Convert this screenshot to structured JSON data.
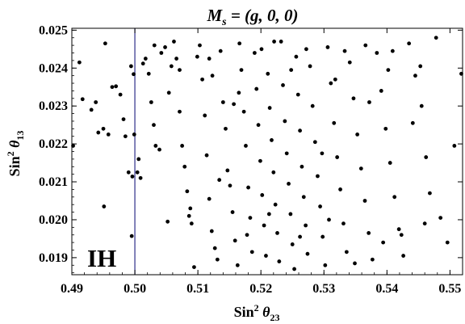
{
  "chart_data": {
    "type": "scatter",
    "title": {
      "prefix": "M",
      "sub": "s",
      "rest": " = (g, 0, 0)"
    },
    "xlabel": {
      "prefix": "Sin",
      "sup": "2",
      "theta": " θ",
      "sub": "23"
    },
    "ylabel": {
      "prefix": "Sin",
      "sup": "2",
      "theta": " θ",
      "sub": "13"
    },
    "xlim": [
      0.49,
      0.552
    ],
    "ylim": [
      0.01855,
      0.02505
    ],
    "x_ticks": [
      {
        "value": 0.49,
        "label": "0.49"
      },
      {
        "value": 0.5,
        "label": "0.50"
      },
      {
        "value": 0.51,
        "label": "0.51"
      },
      {
        "value": 0.52,
        "label": "0.52"
      },
      {
        "value": 0.53,
        "label": "0.53"
      },
      {
        "value": 0.54,
        "label": "0.54"
      },
      {
        "value": 0.55,
        "label": "0.55"
      }
    ],
    "y_ticks": [
      {
        "value": 0.019,
        "label": "0.019"
      },
      {
        "value": 0.02,
        "label": "0.020"
      },
      {
        "value": 0.021,
        "label": "0.021"
      },
      {
        "value": 0.022,
        "label": "0.022"
      },
      {
        "value": 0.023,
        "label": "0.023"
      },
      {
        "value": 0.024,
        "label": "0.024"
      },
      {
        "value": 0.025,
        "label": "0.025"
      }
    ],
    "reference_line": {
      "x": 0.5,
      "color": "#2e2e8a"
    },
    "annotation": "IH",
    "grid": false,
    "marker_color": "#000000",
    "points": [
      [
        0.4902,
        0.02195
      ],
      [
        0.4912,
        0.02415
      ],
      [
        0.4917,
        0.02318
      ],
      [
        0.4931,
        0.0229
      ],
      [
        0.4938,
        0.0231
      ],
      [
        0.4942,
        0.0223
      ],
      [
        0.495,
        0.0224
      ],
      [
        0.4953,
        0.02465
      ],
      [
        0.4951,
        0.02035
      ],
      [
        0.4958,
        0.02225
      ],
      [
        0.4964,
        0.0235
      ],
      [
        0.497,
        0.02352
      ],
      [
        0.4977,
        0.0233
      ],
      [
        0.4982,
        0.02265
      ],
      [
        0.4985,
        0.0222
      ],
      [
        0.499,
        0.02125
      ],
      [
        0.4996,
        0.02114
      ],
      [
        0.4998,
        0.02384
      ],
      [
        0.4999,
        0.02225
      ],
      [
        0.4994,
        0.02405
      ],
      [
        0.4995,
        0.01957
      ],
      [
        0.5004,
        0.02125
      ],
      [
        0.5006,
        0.0216
      ],
      [
        0.5009,
        0.0211
      ],
      [
        0.5013,
        0.02412
      ],
      [
        0.5017,
        0.02425
      ],
      [
        0.5022,
        0.02385
      ],
      [
        0.5026,
        0.0231
      ],
      [
        0.503,
        0.0225
      ],
      [
        0.5033,
        0.02195
      ],
      [
        0.5039,
        0.02185
      ],
      [
        0.5042,
        0.0244
      ],
      [
        0.5048,
        0.02455
      ],
      [
        0.5054,
        0.02335
      ],
      [
        0.5058,
        0.02405
      ],
      [
        0.5062,
        0.0247
      ],
      [
        0.5066,
        0.02425
      ],
      [
        0.5071,
        0.02285
      ],
      [
        0.5075,
        0.02195
      ],
      [
        0.5079,
        0.0214
      ],
      [
        0.5083,
        0.02075
      ],
      [
        0.5086,
        0.0201
      ],
      [
        0.509,
        0.0199
      ],
      [
        0.5094,
        0.01875
      ],
      [
        0.5099,
        0.0243
      ],
      [
        0.5103,
        0.0246
      ],
      [
        0.5107,
        0.0237
      ],
      [
        0.5111,
        0.02275
      ],
      [
        0.5114,
        0.0217
      ],
      [
        0.5118,
        0.02055
      ],
      [
        0.5122,
        0.0197
      ],
      [
        0.5127,
        0.01925
      ],
      [
        0.5131,
        0.01895
      ],
      [
        0.5136,
        0.02445
      ],
      [
        0.514,
        0.0231
      ],
      [
        0.5144,
        0.0224
      ],
      [
        0.5147,
        0.0213
      ],
      [
        0.5151,
        0.0209
      ],
      [
        0.5155,
        0.0202
      ],
      [
        0.5159,
        0.01945
      ],
      [
        0.5163,
        0.0188
      ],
      [
        0.5166,
        0.02465
      ],
      [
        0.5169,
        0.02395
      ],
      [
        0.5173,
        0.02285
      ],
      [
        0.5176,
        0.02195
      ],
      [
        0.518,
        0.02085
      ],
      [
        0.5183,
        0.02005
      ],
      [
        0.5186,
        0.01915
      ],
      [
        0.519,
        0.0244
      ],
      [
        0.5193,
        0.02345
      ],
      [
        0.5196,
        0.0225
      ],
      [
        0.5199,
        0.02155
      ],
      [
        0.5202,
        0.02065
      ],
      [
        0.5205,
        0.01985
      ],
      [
        0.5208,
        0.01905
      ],
      [
        0.5211,
        0.02385
      ],
      [
        0.5214,
        0.02295
      ],
      [
        0.5217,
        0.0221
      ],
      [
        0.522,
        0.02125
      ],
      [
        0.5223,
        0.0204
      ],
      [
        0.5226,
        0.01965
      ],
      [
        0.5229,
        0.0189
      ],
      [
        0.5232,
        0.0247
      ],
      [
        0.5235,
        0.02355
      ],
      [
        0.5238,
        0.0226
      ],
      [
        0.5241,
        0.02175
      ],
      [
        0.5244,
        0.02095
      ],
      [
        0.5247,
        0.02015
      ],
      [
        0.525,
        0.01935
      ],
      [
        0.5253,
        0.0187
      ],
      [
        0.5256,
        0.0243
      ],
      [
        0.5259,
        0.0233
      ],
      [
        0.5262,
        0.02235
      ],
      [
        0.5265,
        0.0214
      ],
      [
        0.5268,
        0.0206
      ],
      [
        0.5271,
        0.01985
      ],
      [
        0.5274,
        0.0191
      ],
      [
        0.5278,
        0.02405
      ],
      [
        0.5282,
        0.023
      ],
      [
        0.5286,
        0.02205
      ],
      [
        0.529,
        0.02115
      ],
      [
        0.5294,
        0.02035
      ],
      [
        0.5298,
        0.01955
      ],
      [
        0.5302,
        0.0188
      ],
      [
        0.5306,
        0.02455
      ],
      [
        0.5311,
        0.0236
      ],
      [
        0.5316,
        0.02255
      ],
      [
        0.5321,
        0.02165
      ],
      [
        0.5326,
        0.0208
      ],
      [
        0.5331,
        0.0199
      ],
      [
        0.5336,
        0.01915
      ],
      [
        0.5341,
        0.02415
      ],
      [
        0.5347,
        0.0232
      ],
      [
        0.5353,
        0.02225
      ],
      [
        0.5359,
        0.02135
      ],
      [
        0.5365,
        0.0205
      ],
      [
        0.5371,
        0.01965
      ],
      [
        0.5377,
        0.01895
      ],
      [
        0.5384,
        0.0244
      ],
      [
        0.5391,
        0.0234
      ],
      [
        0.5398,
        0.0224
      ],
      [
        0.5405,
        0.0215
      ],
      [
        0.5412,
        0.0206
      ],
      [
        0.5419,
        0.01975
      ],
      [
        0.5426,
        0.01905
      ],
      [
        0.5435,
        0.02465
      ],
      [
        0.5445,
        0.0238
      ],
      [
        0.5455,
        0.023
      ],
      [
        0.5462,
        0.02165
      ],
      [
        0.5468,
        0.0207
      ],
      [
        0.5478,
        0.0248
      ],
      [
        0.5485,
        0.02005
      ],
      [
        0.5496,
        0.0194
      ],
      [
        0.5507,
        0.02195
      ],
      [
        0.5518,
        0.02385
      ],
      [
        0.5123,
        0.0238
      ],
      [
        0.5157,
        0.02305
      ],
      [
        0.5201,
        0.0245
      ],
      [
        0.5248,
        0.02395
      ],
      [
        0.5297,
        0.02175
      ],
      [
        0.5333,
        0.02445
      ],
      [
        0.5372,
        0.0231
      ],
      [
        0.5402,
        0.02395
      ],
      [
        0.5441,
        0.02255
      ],
      [
        0.5052,
        0.01995
      ],
      [
        0.5088,
        0.0203
      ],
      [
        0.5134,
        0.02105
      ],
      [
        0.5178,
        0.0196
      ],
      [
        0.5213,
        0.02015
      ],
      [
        0.5262,
        0.01955
      ],
      [
        0.5308,
        0.02
      ],
      [
        0.5349,
        0.01885
      ],
      [
        0.5394,
        0.0194
      ],
      [
        0.5423,
        0.0196
      ],
      [
        0.546,
        0.0199
      ],
      [
        0.5071,
        0.02395
      ],
      [
        0.5118,
        0.02425
      ],
      [
        0.5165,
        0.02335
      ],
      [
        0.5221,
        0.0247
      ],
      [
        0.5272,
        0.0245
      ],
      [
        0.5318,
        0.0237
      ],
      [
        0.5366,
        0.0246
      ],
      [
        0.5409,
        0.02445
      ],
      [
        0.5453,
        0.02405
      ],
      [
        0.5031,
        0.0246
      ]
    ]
  }
}
